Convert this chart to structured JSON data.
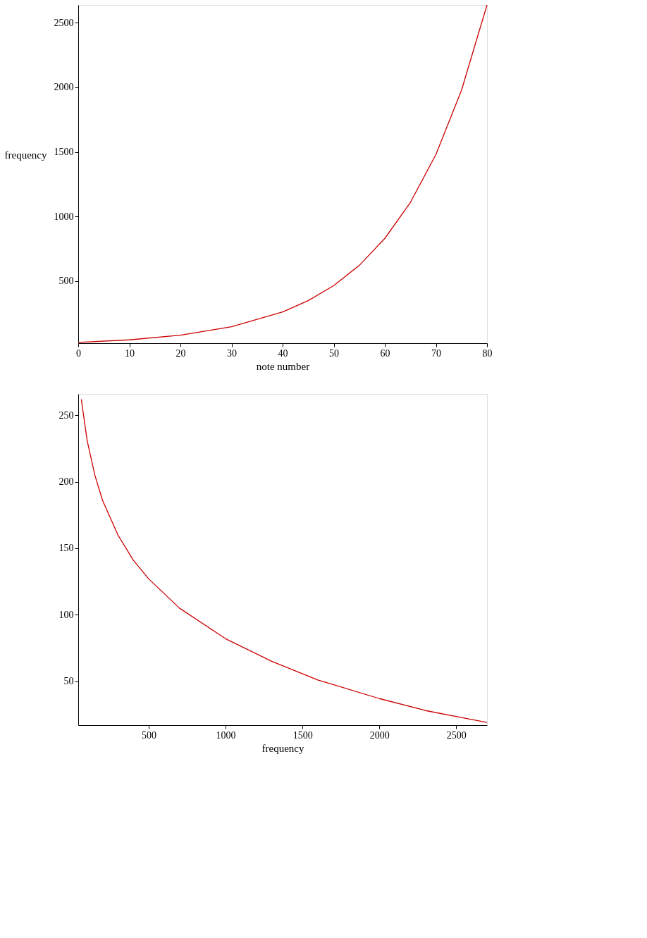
{
  "chart_data": [
    {
      "type": "line",
      "xlabel": "note number",
      "ylabel": "frequency",
      "grid": false,
      "marker": "none",
      "line_style": "solid",
      "x": [
        0,
        10,
        20,
        30,
        40,
        45,
        50,
        55,
        60,
        65,
        70,
        75,
        80
      ],
      "series": [
        {
          "color": "#cc0000",
          "values": [
            26,
            46,
            82,
            147,
            262,
            349,
            466,
            622,
            831,
            1109,
            1480,
            1976,
            2637
          ]
        }
      ],
      "xlim": [
        0,
        80
      ],
      "xticks": [
        0,
        10,
        20,
        30,
        40,
        50,
        60,
        70,
        80
      ],
      "ylim": [
        20,
        2637
      ],
      "yticks": [
        500,
        1000,
        1500,
        2000,
        2500
      ]
    },
    {
      "type": "line",
      "xlabel": "frequency",
      "grid": false,
      "marker": "none",
      "line_style": "solid",
      "x": [
        62,
        100,
        150,
        200,
        300,
        400,
        500,
        700,
        1000,
        1300,
        1600,
        2000,
        2300,
        2700
      ],
      "series": [
        {
          "color": "#cc0000",
          "values": [
            262,
            231,
            205,
            186,
            160,
            141,
            127,
            105,
            82,
            65,
            51,
            37,
            28,
            19
          ]
        }
      ],
      "xlim": [
        42,
        2700
      ],
      "xticks": [
        500,
        1000,
        1500,
        2000,
        2500
      ],
      "ylim": [
        17,
        266
      ],
      "yticks": [
        50,
        100,
        150,
        200,
        250
      ]
    }
  ]
}
